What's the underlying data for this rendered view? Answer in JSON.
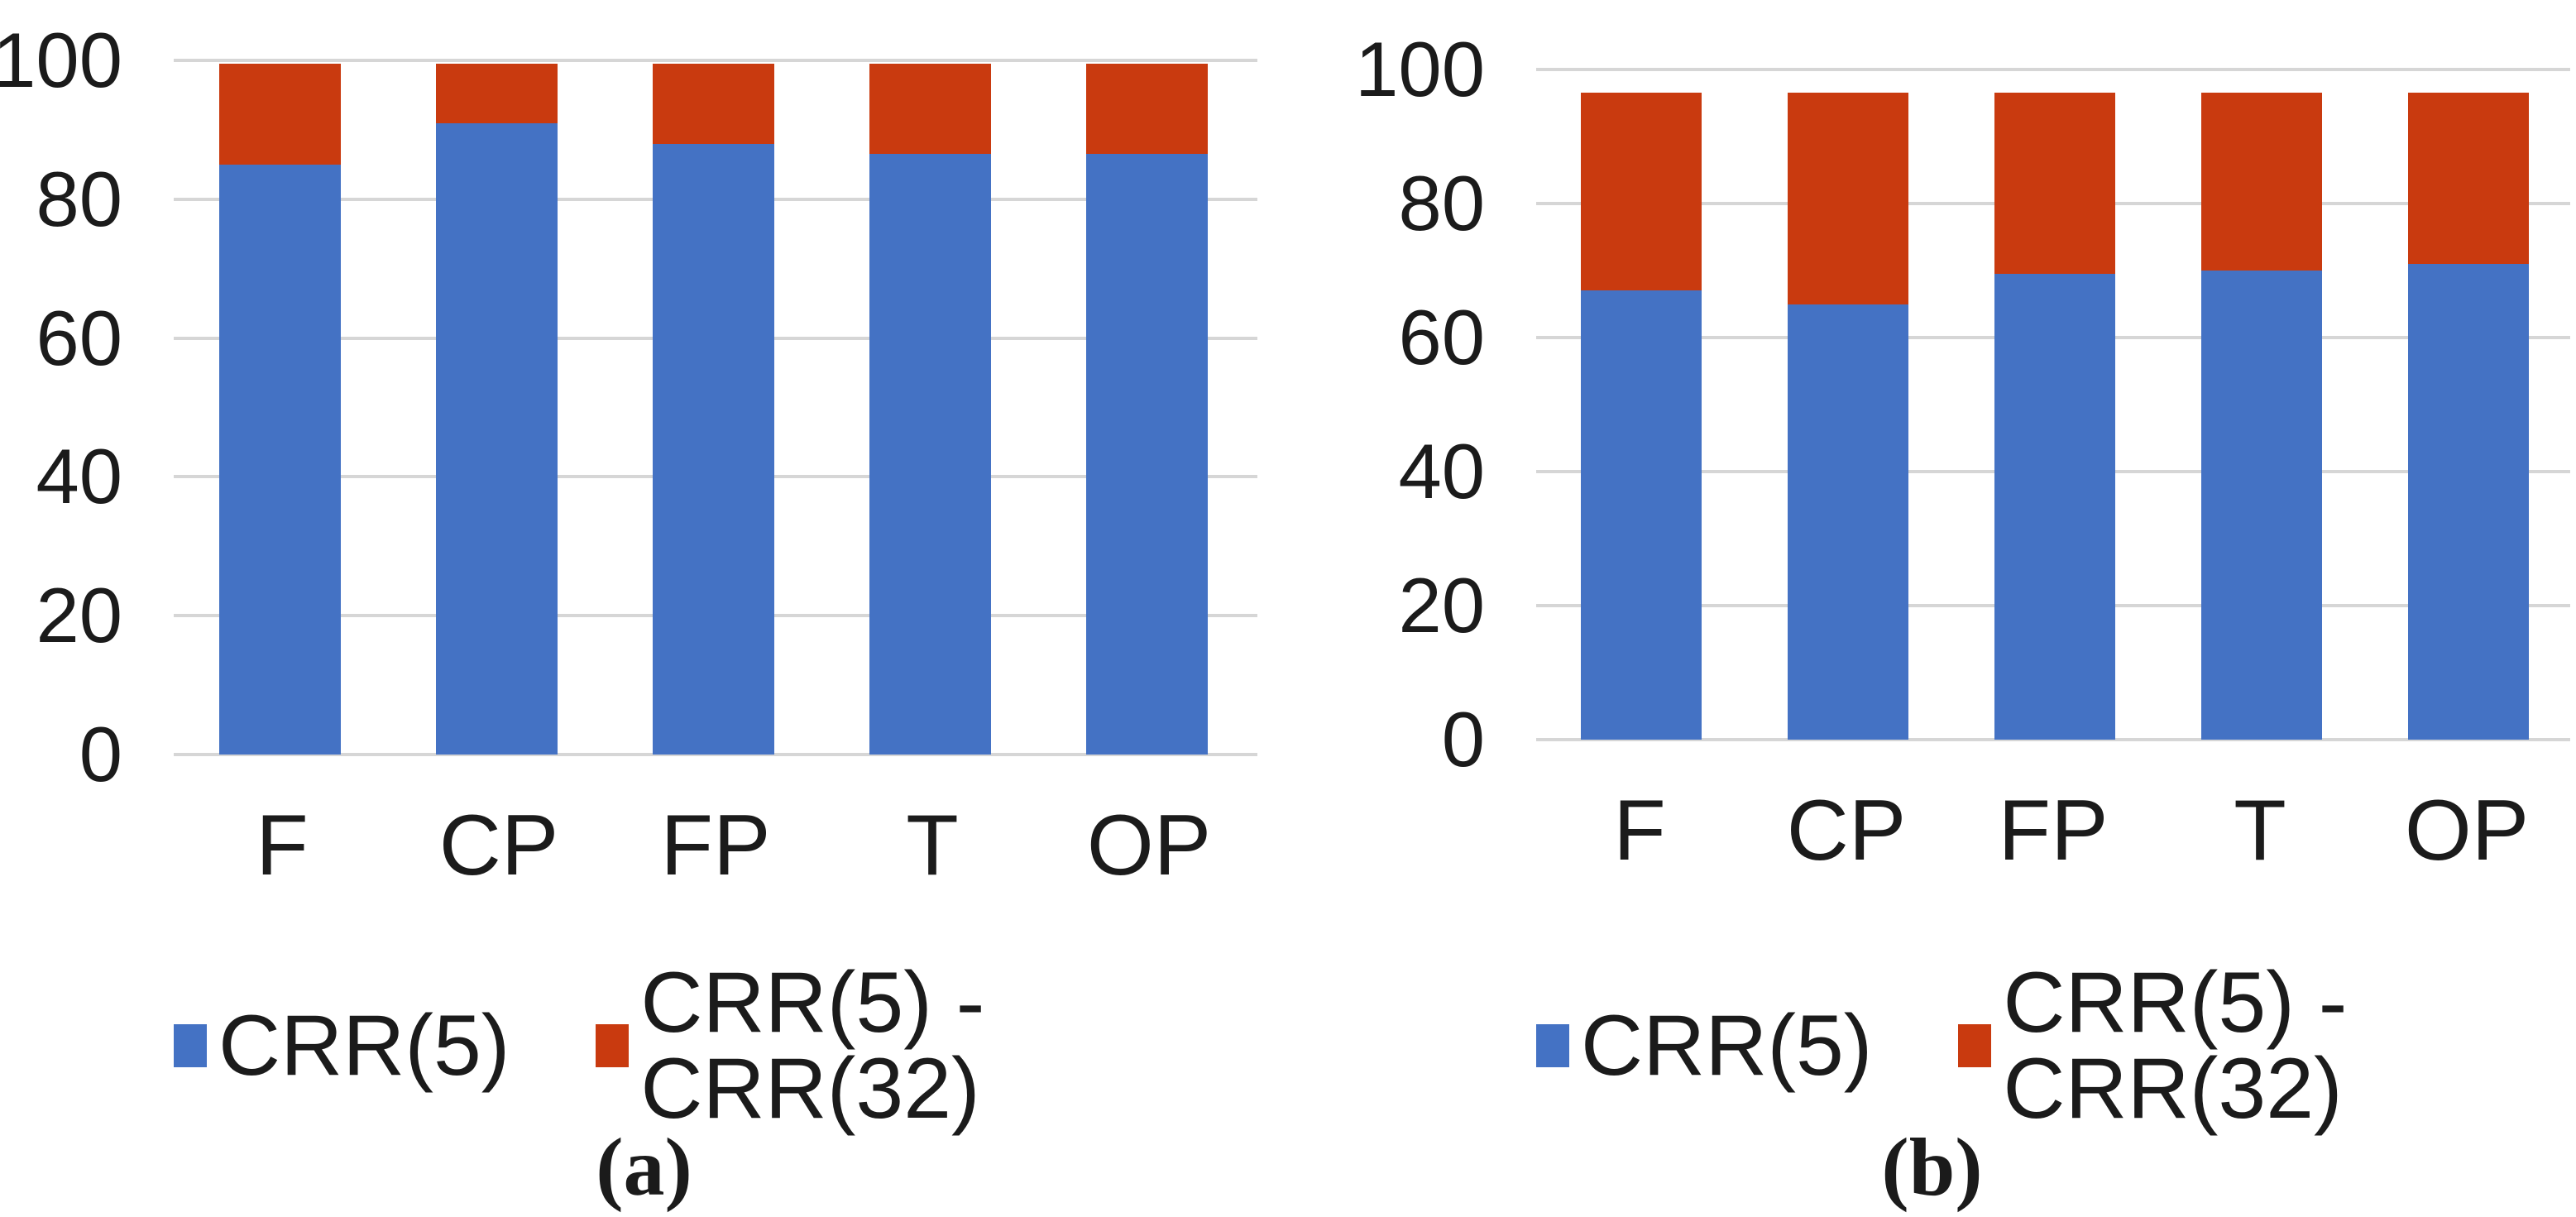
{
  "colors": {
    "series1": "#4472C4",
    "series2": "#C93A0F",
    "gridline": "#D6D6D6",
    "text": "#1B1B1B",
    "background": "#FFFFFF"
  },
  "chart_data": [
    {
      "type": "bar",
      "stacked": true,
      "panel_caption": "(a)",
      "categories": [
        "F",
        "CP",
        "FP",
        "T",
        "OP"
      ],
      "series": [
        {
          "name": "CRR(5)",
          "color": "#4472C4",
          "values": [
            85,
            91,
            88,
            86.5,
            86.5
          ]
        },
        {
          "name": "CRR(5) - CRR(32)",
          "color": "#C93A0F",
          "values": [
            14.5,
            8.5,
            11.5,
            13,
            13
          ]
        }
      ],
      "stack_totals": [
        99.5,
        99.5,
        99.5,
        99.5,
        99.5
      ],
      "ylim": [
        0,
        100
      ],
      "yticks": [
        0,
        20,
        40,
        60,
        80,
        100
      ],
      "grid": true,
      "legend_position": "bottom"
    },
    {
      "type": "bar",
      "stacked": true,
      "panel_caption": "(b)",
      "categories": [
        "F",
        "CP",
        "FP",
        "T",
        "OP"
      ],
      "series": [
        {
          "name": "CRR(5)",
          "color": "#4472C4",
          "values": [
            67,
            65,
            69.5,
            70,
            71
          ]
        },
        {
          "name": "CRR(5) - CRR(32)",
          "color": "#C93A0F",
          "values": [
            29.5,
            31.5,
            27,
            26.5,
            25.5
          ]
        }
      ],
      "stack_totals": [
        96.5,
        96.5,
        96.5,
        96.5,
        96.5
      ],
      "ylim": [
        0,
        100
      ],
      "yticks": [
        0,
        20,
        40,
        60,
        80,
        100
      ],
      "grid": true,
      "legend_position": "bottom"
    }
  ]
}
